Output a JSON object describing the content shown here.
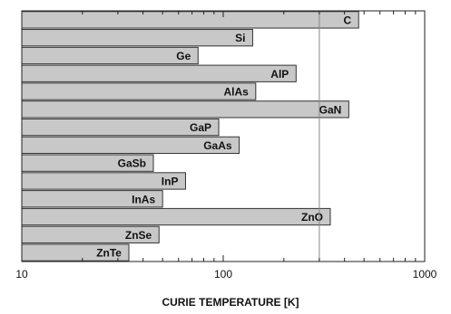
{
  "chart_data": {
    "type": "bar",
    "orientation": "horizontal",
    "xscale": "log",
    "xlim": [
      10,
      1000
    ],
    "xlabel": "CURIE TEMPERATURE [K]",
    "xticks": [
      "10",
      "100",
      "1000"
    ],
    "reference_line_x": 300,
    "grid": false,
    "legend": "none",
    "bar_color": "#c8c8c8",
    "categories": [
      "C",
      "Si",
      "Ge",
      "AlP",
      "AlAs",
      "GaN",
      "GaP",
      "GaAs",
      "GaSb",
      "InP",
      "InAs",
      "ZnO",
      "ZnSe",
      "ZnTe"
    ],
    "values": [
      470,
      140,
      75,
      230,
      145,
      420,
      95,
      120,
      45,
      65,
      50,
      340,
      48,
      34
    ]
  }
}
